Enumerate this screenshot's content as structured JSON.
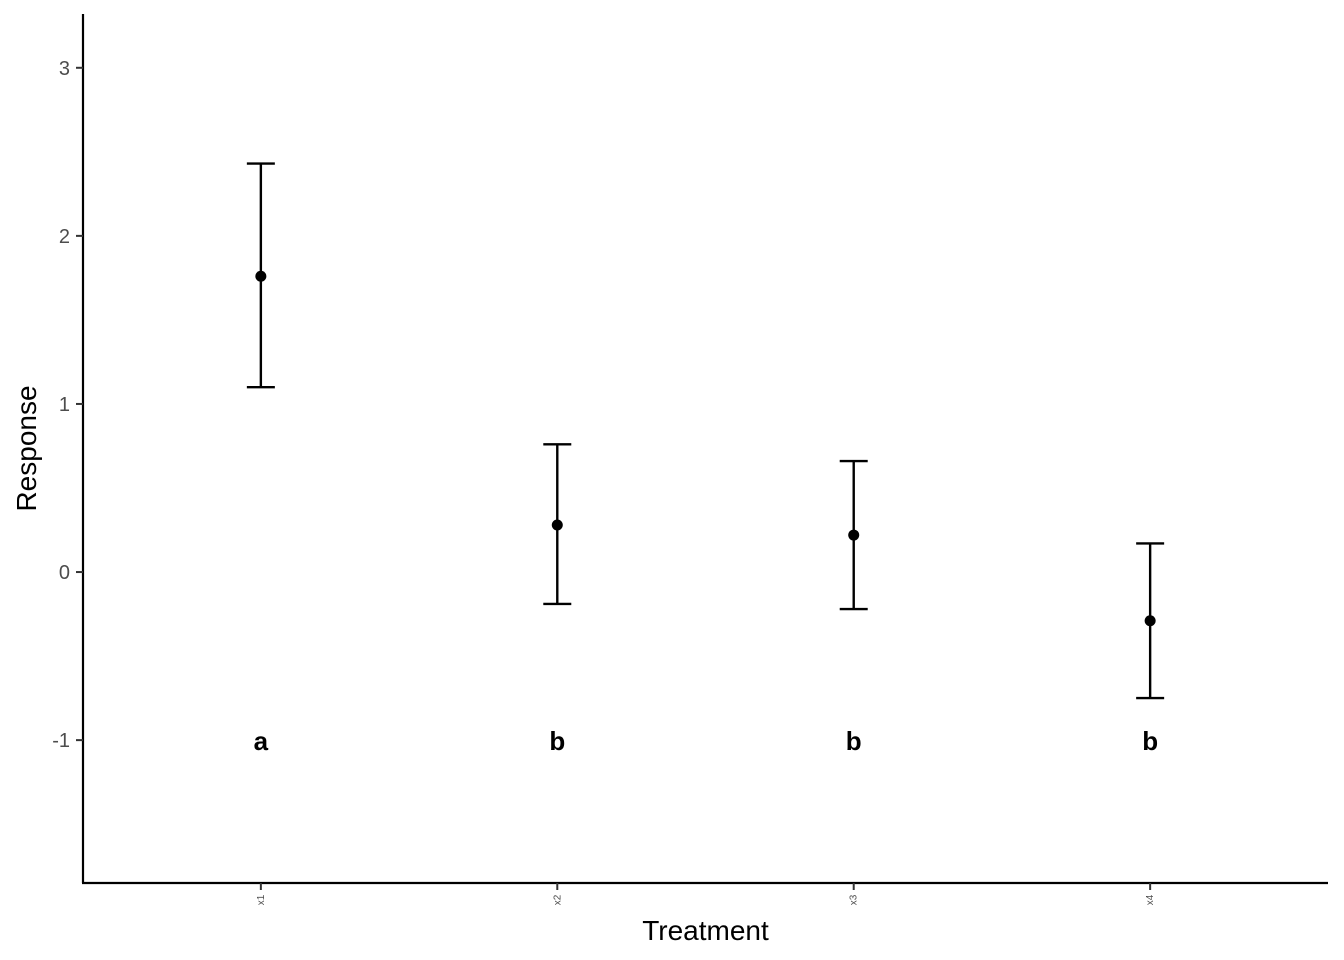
{
  "chart_data": {
    "type": "scatter",
    "title": "",
    "xlabel": "Treatment",
    "ylabel": "Response",
    "categories": [
      "x1",
      "x2",
      "x3",
      "x4"
    ],
    "values": [
      1.76,
      0.28,
      0.22,
      -0.29
    ],
    "error_low": [
      1.1,
      -0.19,
      -0.22,
      -0.75
    ],
    "error_high": [
      2.43,
      0.76,
      0.66,
      0.17
    ],
    "group_letters": [
      "a",
      "b",
      "b",
      "b"
    ],
    "group_letter_y": -1,
    "ylim": [
      -1.85,
      3.32
    ],
    "yticks": [
      -1,
      0,
      1,
      2,
      3
    ],
    "ytick_labels": [
      "-1",
      "0",
      "1",
      "2",
      "3"
    ],
    "grid": false,
    "legend": "none",
    "colors": {
      "point": "#000000",
      "axis": "#000000",
      "tick_label": "#4d4d4d"
    }
  }
}
